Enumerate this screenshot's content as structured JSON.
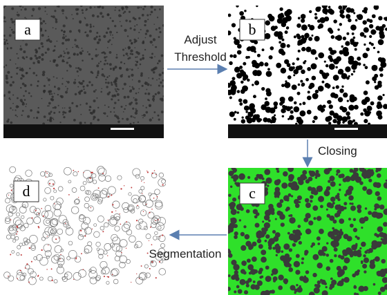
{
  "panels": [
    {
      "label": "a"
    },
    {
      "label": "b"
    },
    {
      "label": "c"
    },
    {
      "label": "d"
    }
  ],
  "arrows": [
    {
      "lines": [
        "Adjust",
        "Threshold"
      ]
    },
    {
      "lines": [
        "Closing"
      ]
    },
    {
      "lines": [
        "Segmentation"
      ]
    }
  ]
}
